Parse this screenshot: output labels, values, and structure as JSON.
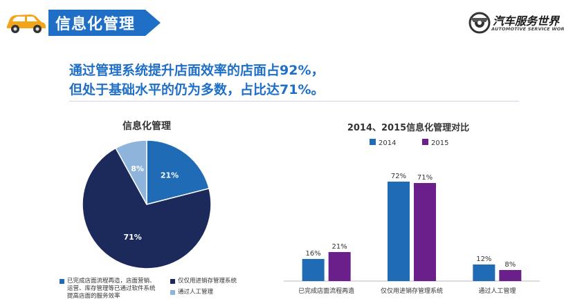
{
  "header": {
    "title": "信息化管理",
    "bar_color": "#1f6fc7"
  },
  "logo": {
    "name_cn": "汽车服务世界",
    "name_en": "AUTOMOTIVE SERVICE WORLD"
  },
  "headline": {
    "line1": "通过管理系统提升店面效率的店面占92%，",
    "line2": "但处于基础水平的仍为多数，占比达71%。"
  },
  "chart_data": [
    {
      "type": "pie",
      "title": "信息化管理",
      "categories": [
        "已完成店面流程再造，店面营销、运营、库存管理等已通过软件系统提高店面的服务效率",
        "仅仅用进销存管理系统",
        "通过人工管理"
      ],
      "values": [
        21,
        71,
        8
      ],
      "labels": [
        "21%",
        "71%",
        "8%"
      ],
      "colors": [
        "#1f6bb5",
        "#1b2a5a",
        "#8fb4dc"
      ],
      "legend": [
        "已完成店面流程再造，店面营销、",
        "运营、库存管理等已通过软件系统",
        "提高店面的服务效率",
        "仅仅用进销存管理系统",
        "通过人工管理"
      ]
    },
    {
      "type": "bar",
      "title": "2014、2015信息化管理对比",
      "categories": [
        "已完成店面流程再造",
        "仅仅用进销存管理系统",
        "通过人工管理"
      ],
      "series": [
        {
          "name": "2014",
          "values": [
            16,
            72,
            12
          ],
          "labels": [
            "16%",
            "72%",
            "12%"
          ],
          "color": "#1f6bb5"
        },
        {
          "name": "2015",
          "values": [
            21,
            71,
            8
          ],
          "labels": [
            "21%",
            "71%",
            "8%"
          ],
          "color": "#6a1f8a"
        }
      ],
      "ylim": [
        0,
        80
      ],
      "grid": false,
      "legend_position": "top"
    }
  ]
}
